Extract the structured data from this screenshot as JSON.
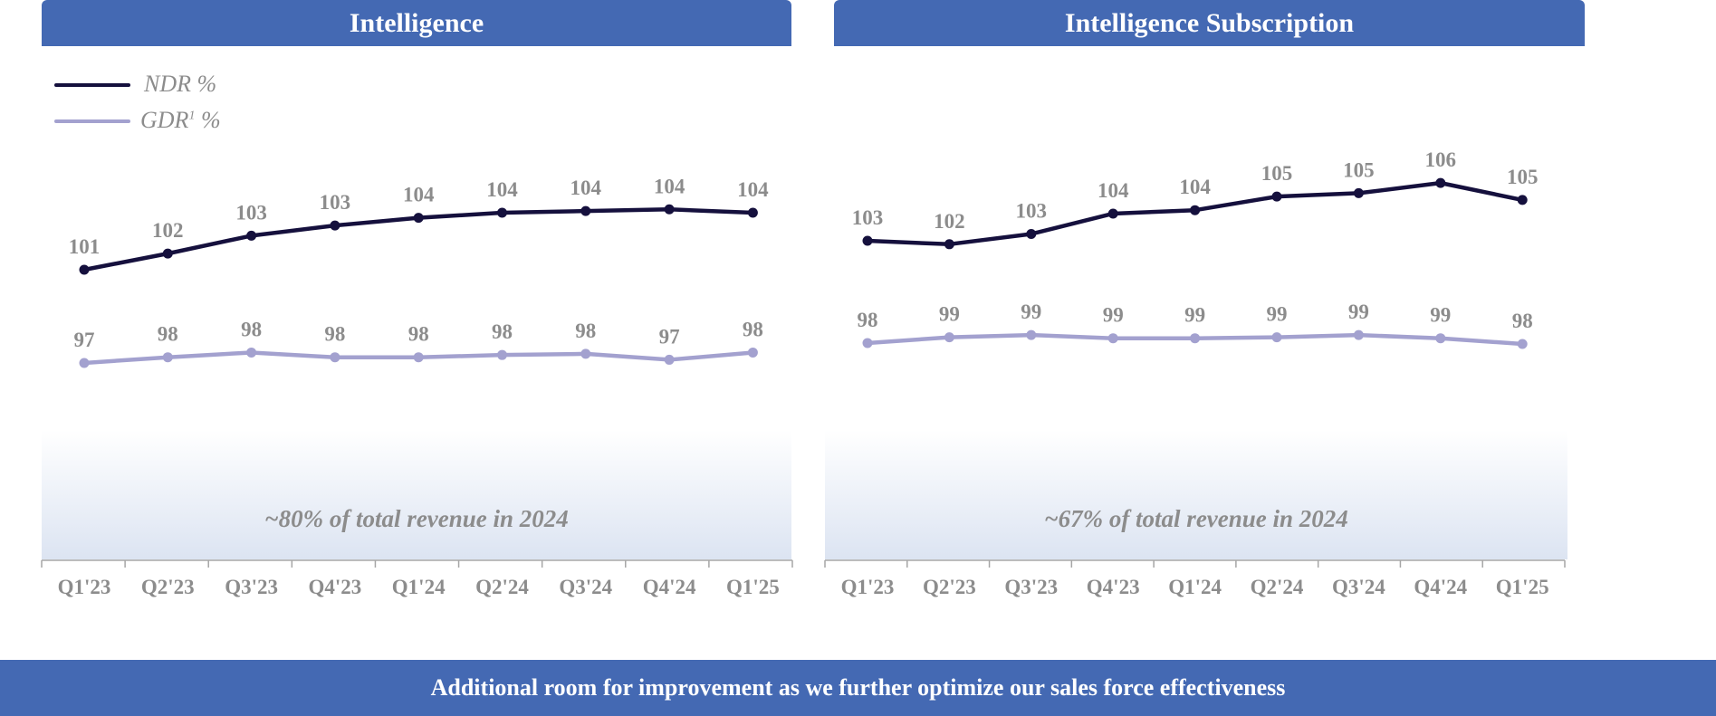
{
  "headers": {
    "left": "Intelligence",
    "right": "Intelligence Subscription"
  },
  "legend": {
    "ndr_prefix": "NDR %",
    "gdr_prefix": "GDR",
    "gdr_sup": "1",
    "gdr_suffix": " %"
  },
  "notes": {
    "left": "~80% of total revenue in 2024",
    "right": "~67% of total revenue in 2024"
  },
  "footer": "Additional room for improvement as we further optimize our sales force effectiveness",
  "colors": {
    "ndr": "#15103d",
    "gdr": "#a3a1cf",
    "label": "#8c8c8c",
    "header": "#4469b3"
  },
  "chart_data": [
    {
      "type": "line",
      "title": "Intelligence",
      "categories": [
        "Q1'23",
        "Q2'23",
        "Q3'23",
        "Q4'23",
        "Q1'24",
        "Q2'24",
        "Q3'24",
        "Q4'24",
        "Q1'25"
      ],
      "series": [
        {
          "name": "NDR %",
          "values": [
            101,
            102,
            103,
            103,
            104,
            104,
            104,
            104,
            104
          ],
          "estimated_position_values": [
            101.0,
            101.95,
            103.0,
            103.6,
            104.05,
            104.35,
            104.45,
            104.55,
            104.35
          ]
        },
        {
          "name": "GDR1 %",
          "values": [
            97,
            98,
            98,
            98,
            98,
            98,
            98,
            97,
            98
          ],
          "estimated_position_values": [
            97.4,
            97.7,
            97.95,
            97.7,
            97.7,
            97.82,
            97.88,
            97.57,
            97.95
          ]
        }
      ],
      "annotation": "~80% of total revenue in 2024"
    },
    {
      "type": "line",
      "title": "Intelligence Subscription",
      "categories": [
        "Q1'23",
        "Q2'23",
        "Q3'23",
        "Q4'23",
        "Q1'24",
        "Q2'24",
        "Q3'24",
        "Q4'24",
        "Q1'25"
      ],
      "series": [
        {
          "name": "NDR %",
          "values": [
            103,
            102,
            103,
            104,
            104,
            105,
            105,
            106,
            105
          ],
          "estimated_position_values": [
            102.7,
            102.5,
            103.1,
            104.3,
            104.5,
            105.3,
            105.5,
            106.1,
            105.1
          ]
        },
        {
          "name": "GDR1 %",
          "values": [
            98,
            99,
            99,
            99,
            99,
            99,
            99,
            99,
            98
          ],
          "estimated_position_values": [
            98.45,
            98.75,
            98.87,
            98.7,
            98.7,
            98.75,
            98.87,
            98.7,
            98.4
          ]
        }
      ],
      "annotation": "~67% of total revenue in 2024"
    }
  ]
}
